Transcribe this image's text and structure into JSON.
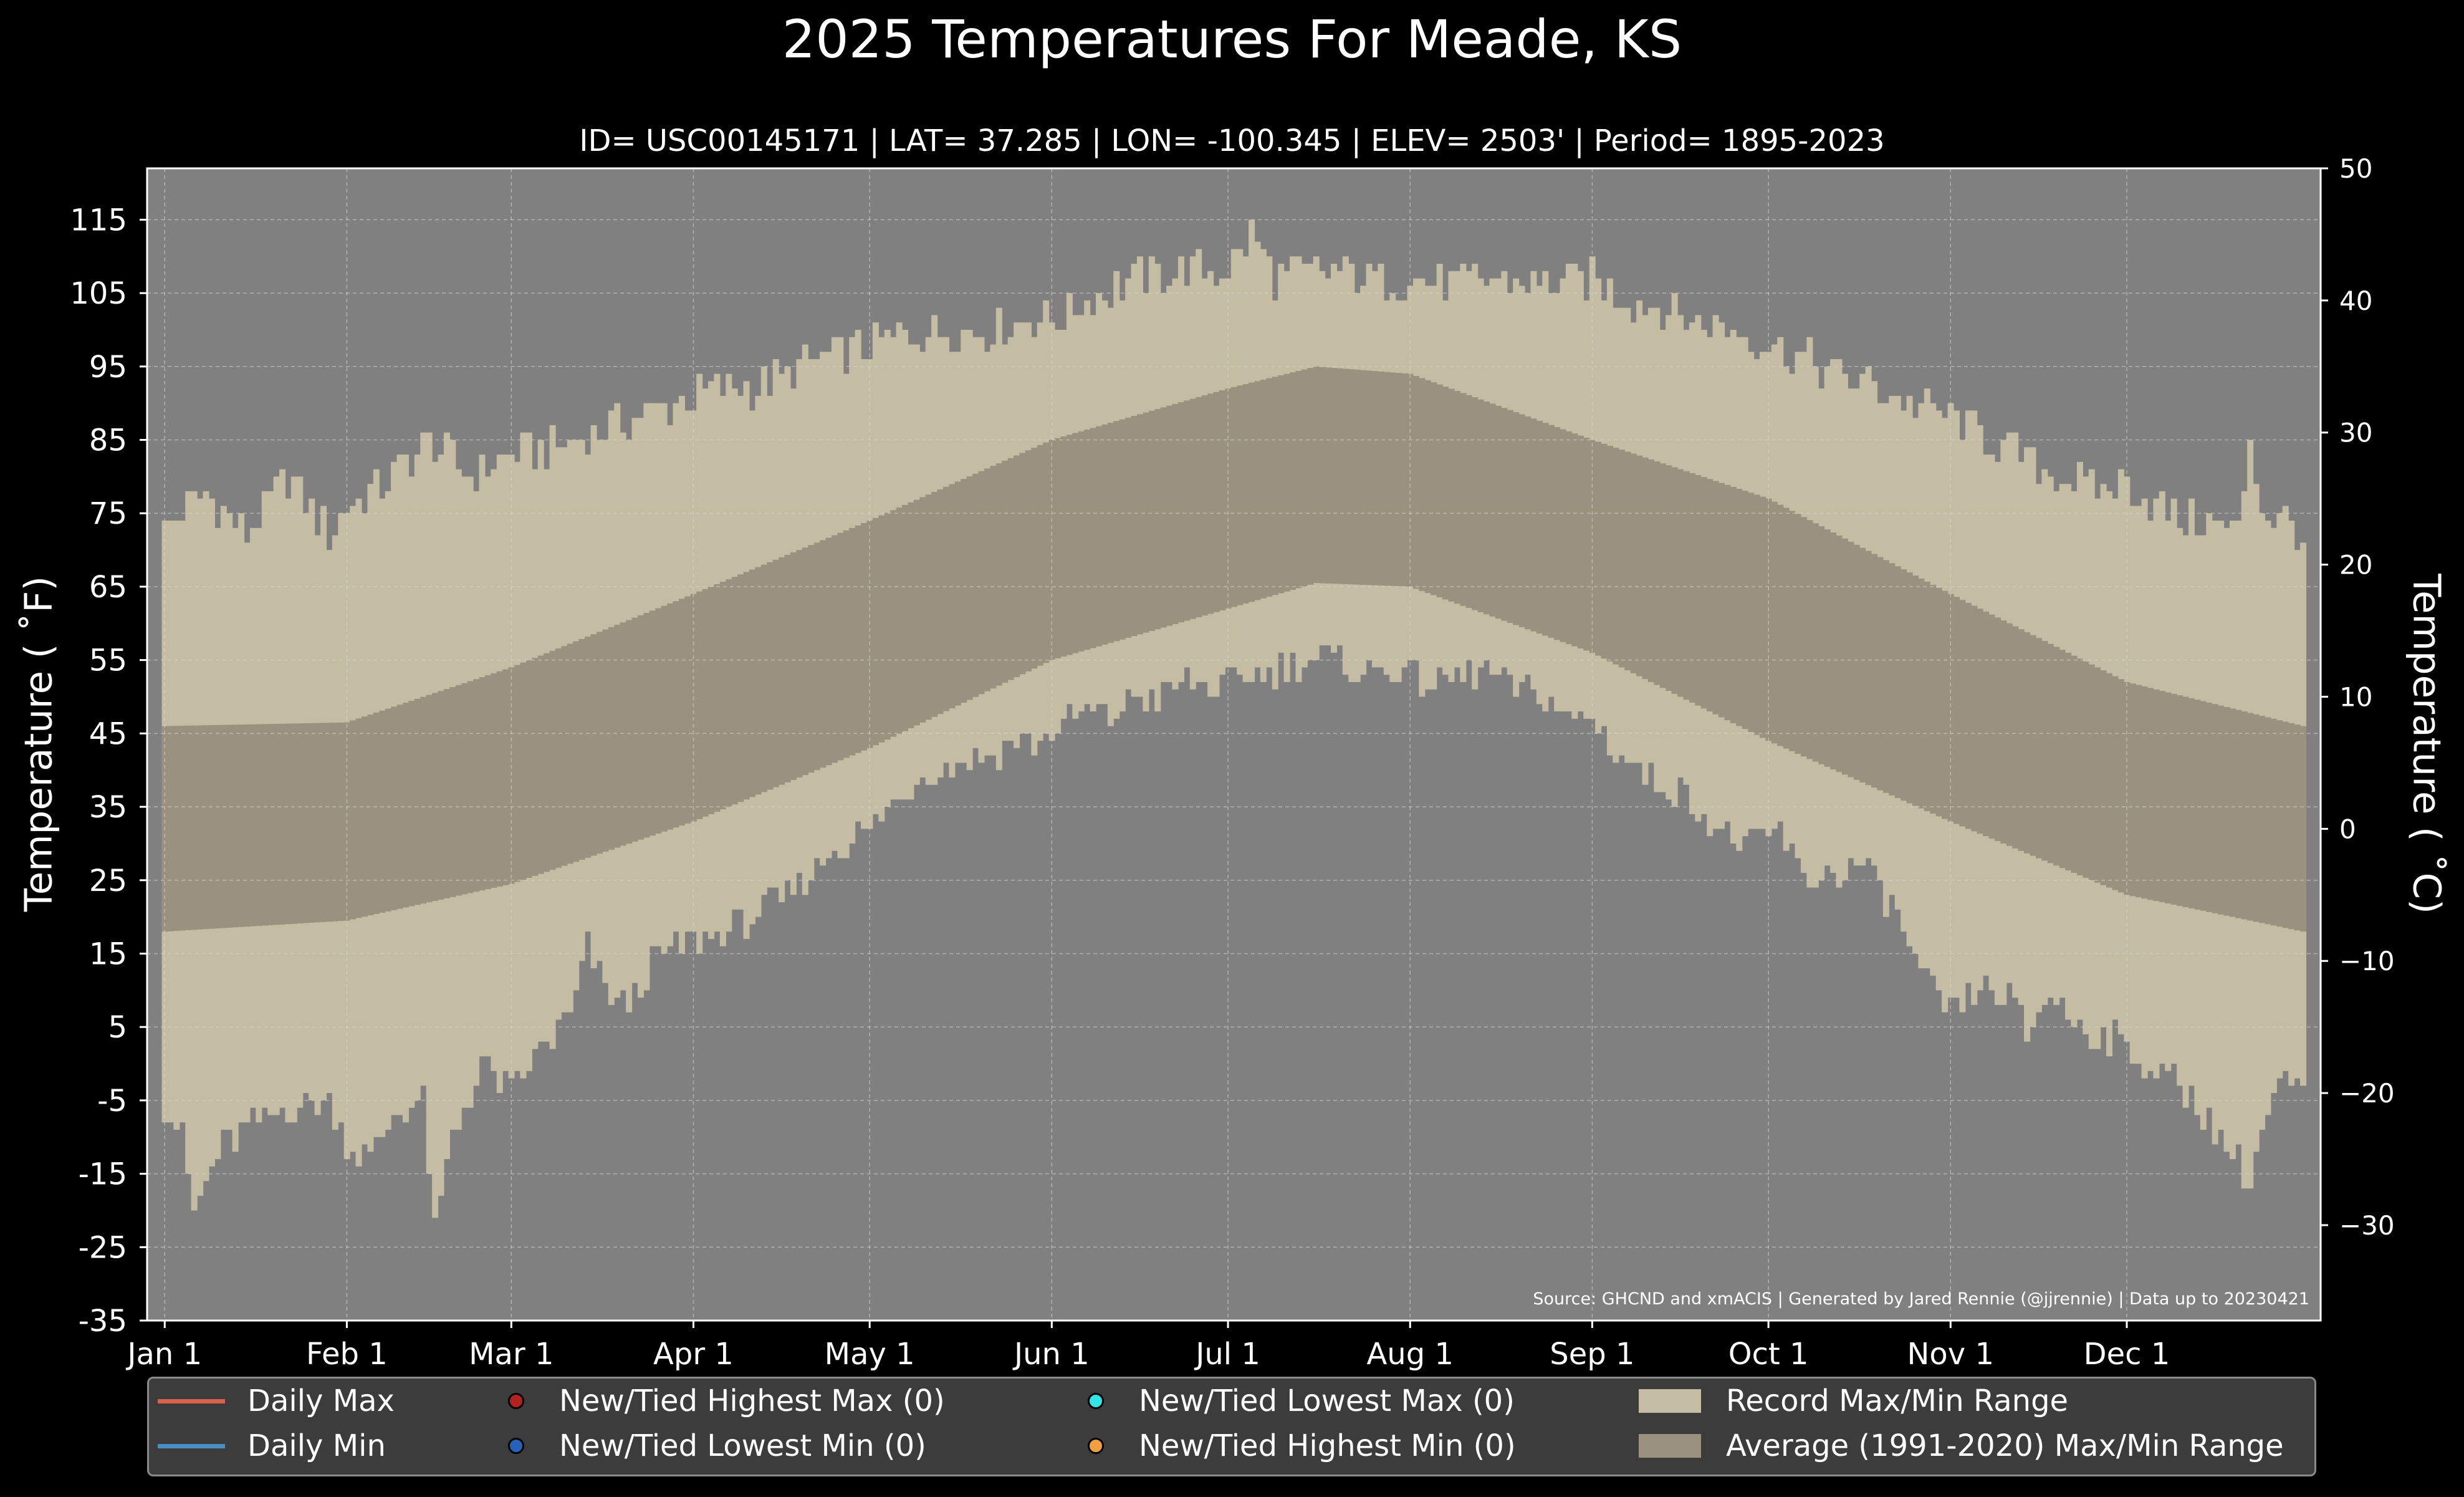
{
  "title": "2025 Temperatures For Meade, KS",
  "subtitle": "ID= USC00145171 | LAT= 37.285 | LON= -100.345 | ELEV= 2503' | Period= 1895-2023",
  "ylabel_left": "Temperature ( $^{\\circ}$F)",
  "ylabel_left_display": "Temperature ( ˚F)",
  "ylabel_right_display": "Temperature ( ˚C)",
  "source": "Source: GHCND and xmACIS | Generated by Jared Rennie (@jjrennie) | Data up to 20230421",
  "colors": {
    "background": "#000000",
    "plot_bg": "#808080",
    "record_range": "#c4bca3",
    "average_range": "#9a917e",
    "daily_max": "#d9614c",
    "daily_min": "#4a8fc4",
    "new_high_max": "#b22222",
    "new_low_min": "#2462b8",
    "new_low_max": "#33e6e6",
    "new_high_min": "#f0a040"
  },
  "legend": [
    {
      "label": "Daily Max",
      "kind": "line",
      "color_key": "daily_max"
    },
    {
      "label": "Daily Min",
      "kind": "line",
      "color_key": "daily_min"
    },
    {
      "label": "New/Tied Highest Max (0)",
      "kind": "dot",
      "color_key": "new_high_max"
    },
    {
      "label": "New/Tied Lowest Min (0)",
      "kind": "dot",
      "color_key": "new_low_min"
    },
    {
      "label": "New/Tied Lowest Max (0)",
      "kind": "dot",
      "color_key": "new_low_max"
    },
    {
      "label": "New/Tied Highest Min (0)",
      "kind": "dot",
      "color_key": "new_high_min"
    },
    {
      "label": "Record Max/Min Range",
      "kind": "patch",
      "color_key": "record_range"
    },
    {
      "label": "Average (1991-2020) Max/Min Range",
      "kind": "patch",
      "color_key": "average_range"
    }
  ],
  "chart_data": {
    "type": "bar",
    "title": "2025 Temperatures For Meade, KS",
    "xlabel": "",
    "ylabel": "Temperature ( ˚F)",
    "ylabel_right": "Temperature ( ˚C)",
    "xlim": [
      -2,
      368
    ],
    "ylim": [
      -35,
      122
    ],
    "y_ticks": [
      -35,
      -25,
      -15,
      -5,
      5,
      15,
      25,
      35,
      45,
      55,
      65,
      75,
      85,
      95,
      105,
      115
    ],
    "y2_ticks": [
      -30,
      -20,
      -10,
      0,
      10,
      20,
      30,
      40,
      50
    ],
    "x_ticks": [
      {
        "day": 1,
        "label": "Jan 1"
      },
      {
        "day": 32,
        "label": "Feb 1"
      },
      {
        "day": 60,
        "label": "Mar 1"
      },
      {
        "day": 91,
        "label": "Apr 1"
      },
      {
        "day": 121,
        "label": "May 1"
      },
      {
        "day": 152,
        "label": "Jun 1"
      },
      {
        "day": 182,
        "label": "Jul 1"
      },
      {
        "day": 213,
        "label": "Aug 1"
      },
      {
        "day": 244,
        "label": "Sep 1"
      },
      {
        "day": 274,
        "label": "Oct 1"
      },
      {
        "day": 305,
        "label": "Nov 1"
      },
      {
        "day": 335,
        "label": "Dec 1"
      }
    ],
    "grid": true,
    "legend_position": "bottom",
    "series": [
      {
        "name": "Record Max/Min Range",
        "record_max_anchors": [
          [
            1,
            73
          ],
          [
            8,
            78
          ],
          [
            15,
            72
          ],
          [
            22,
            80
          ],
          [
            29,
            72
          ],
          [
            32,
            76
          ],
          [
            40,
            80
          ],
          [
            46,
            85
          ],
          [
            53,
            80
          ],
          [
            60,
            83
          ],
          [
            67,
            84
          ],
          [
            74,
            86
          ],
          [
            81,
            88
          ],
          [
            88,
            90
          ],
          [
            95,
            92
          ],
          [
            102,
            92
          ],
          [
            110,
            95
          ],
          [
            118,
            97
          ],
          [
            126,
            99
          ],
          [
            134,
            100
          ],
          [
            142,
            100
          ],
          [
            150,
            102
          ],
          [
            152,
            101
          ],
          [
            158,
            104
          ],
          [
            166,
            107
          ],
          [
            174,
            108
          ],
          [
            182,
            108
          ],
          [
            186,
            113
          ],
          [
            190,
            107
          ],
          [
            198,
            108
          ],
          [
            206,
            107
          ],
          [
            213,
            107
          ],
          [
            220,
            106
          ],
          [
            228,
            107
          ],
          [
            236,
            106
          ],
          [
            244,
            107
          ],
          [
            250,
            104
          ],
          [
            256,
            103
          ],
          [
            262,
            101
          ],
          [
            268,
            100
          ],
          [
            274,
            98
          ],
          [
            280,
            96
          ],
          [
            286,
            94
          ],
          [
            292,
            92
          ],
          [
            298,
            90
          ],
          [
            305,
            88
          ],
          [
            312,
            85
          ],
          [
            318,
            82
          ],
          [
            324,
            80
          ],
          [
            330,
            78
          ],
          [
            335,
            79
          ],
          [
            342,
            75
          ],
          [
            348,
            74
          ],
          [
            354,
            72
          ],
          [
            356,
            86
          ],
          [
            358,
            75
          ],
          [
            362,
            74
          ],
          [
            365,
            72
          ]
        ],
        "record_min_anchors": [
          [
            1,
            -6
          ],
          [
            4,
            -10
          ],
          [
            6,
            -20
          ],
          [
            10,
            -12
          ],
          [
            15,
            -9
          ],
          [
            22,
            -6
          ],
          [
            29,
            -5
          ],
          [
            32,
            -11
          ],
          [
            36,
            -13
          ],
          [
            40,
            -7
          ],
          [
            45,
            -5
          ],
          [
            47,
            -23
          ],
          [
            50,
            -10
          ],
          [
            55,
            0
          ],
          [
            60,
            -4
          ],
          [
            65,
            2
          ],
          [
            70,
            6
          ],
          [
            73,
            16
          ],
          [
            76,
            10
          ],
          [
            80,
            8
          ],
          [
            84,
            14
          ],
          [
            88,
            16
          ],
          [
            92,
            17
          ],
          [
            96,
            18
          ],
          [
            101,
            20
          ],
          [
            106,
            22
          ],
          [
            111,
            26
          ],
          [
            116,
            30
          ],
          [
            121,
            32
          ],
          [
            126,
            36
          ],
          [
            131,
            40
          ],
          [
            136,
            41
          ],
          [
            141,
            42
          ],
          [
            146,
            44
          ],
          [
            150,
            44
          ],
          [
            154,
            46
          ],
          [
            158,
            48
          ],
          [
            162,
            47
          ],
          [
            166,
            50
          ],
          [
            170,
            50
          ],
          [
            175,
            52
          ],
          [
            180,
            51
          ],
          [
            186,
            53
          ],
          [
            192,
            54
          ],
          [
            196,
            55
          ],
          [
            200,
            55
          ],
          [
            206,
            53
          ],
          [
            210,
            54
          ],
          [
            215,
            52
          ],
          [
            220,
            52
          ],
          [
            226,
            54
          ],
          [
            230,
            51
          ],
          [
            236,
            50
          ],
          [
            240,
            47
          ],
          [
            244,
            47
          ],
          [
            248,
            43
          ],
          [
            252,
            40
          ],
          [
            258,
            37
          ],
          [
            262,
            35
          ],
          [
            268,
            30
          ],
          [
            272,
            30
          ],
          [
            276,
            32
          ],
          [
            280,
            25
          ],
          [
            285,
            26
          ],
          [
            290,
            27
          ],
          [
            296,
            20
          ],
          [
            300,
            12
          ],
          [
            305,
            7
          ],
          [
            310,
            10
          ],
          [
            315,
            9
          ],
          [
            318,
            4
          ],
          [
            322,
            10
          ],
          [
            326,
            6
          ],
          [
            330,
            4
          ],
          [
            334,
            3
          ],
          [
            338,
            0
          ],
          [
            342,
            -2
          ],
          [
            346,
            -4
          ],
          [
            350,
            -9
          ],
          [
            353,
            -12
          ],
          [
            356,
            -16
          ],
          [
            358,
            -9
          ],
          [
            361,
            -3
          ],
          [
            365,
            -4
          ]
        ]
      },
      {
        "name": "Average (1991-2020) Max/Min Range",
        "avg_max_anchors": [
          [
            1,
            46
          ],
          [
            32,
            46.5
          ],
          [
            60,
            54
          ],
          [
            91,
            64
          ],
          [
            121,
            74
          ],
          [
            152,
            85
          ],
          [
            182,
            92
          ],
          [
            197,
            95
          ],
          [
            213,
            94
          ],
          [
            244,
            85
          ],
          [
            274,
            77
          ],
          [
            305,
            64
          ],
          [
            335,
            52
          ],
          [
            365,
            46
          ]
        ],
        "avg_min_anchors": [
          [
            1,
            18
          ],
          [
            32,
            19.5
          ],
          [
            60,
            24.5
          ],
          [
            91,
            33
          ],
          [
            121,
            43
          ],
          [
            152,
            55
          ],
          [
            182,
            62
          ],
          [
            197,
            65.5
          ],
          [
            213,
            65
          ],
          [
            244,
            56
          ],
          [
            274,
            44
          ],
          [
            305,
            33
          ],
          [
            335,
            23
          ],
          [
            365,
            18
          ]
        ]
      },
      {
        "name": "Daily Max",
        "values": []
      },
      {
        "name": "Daily Min",
        "values": []
      }
    ]
  }
}
